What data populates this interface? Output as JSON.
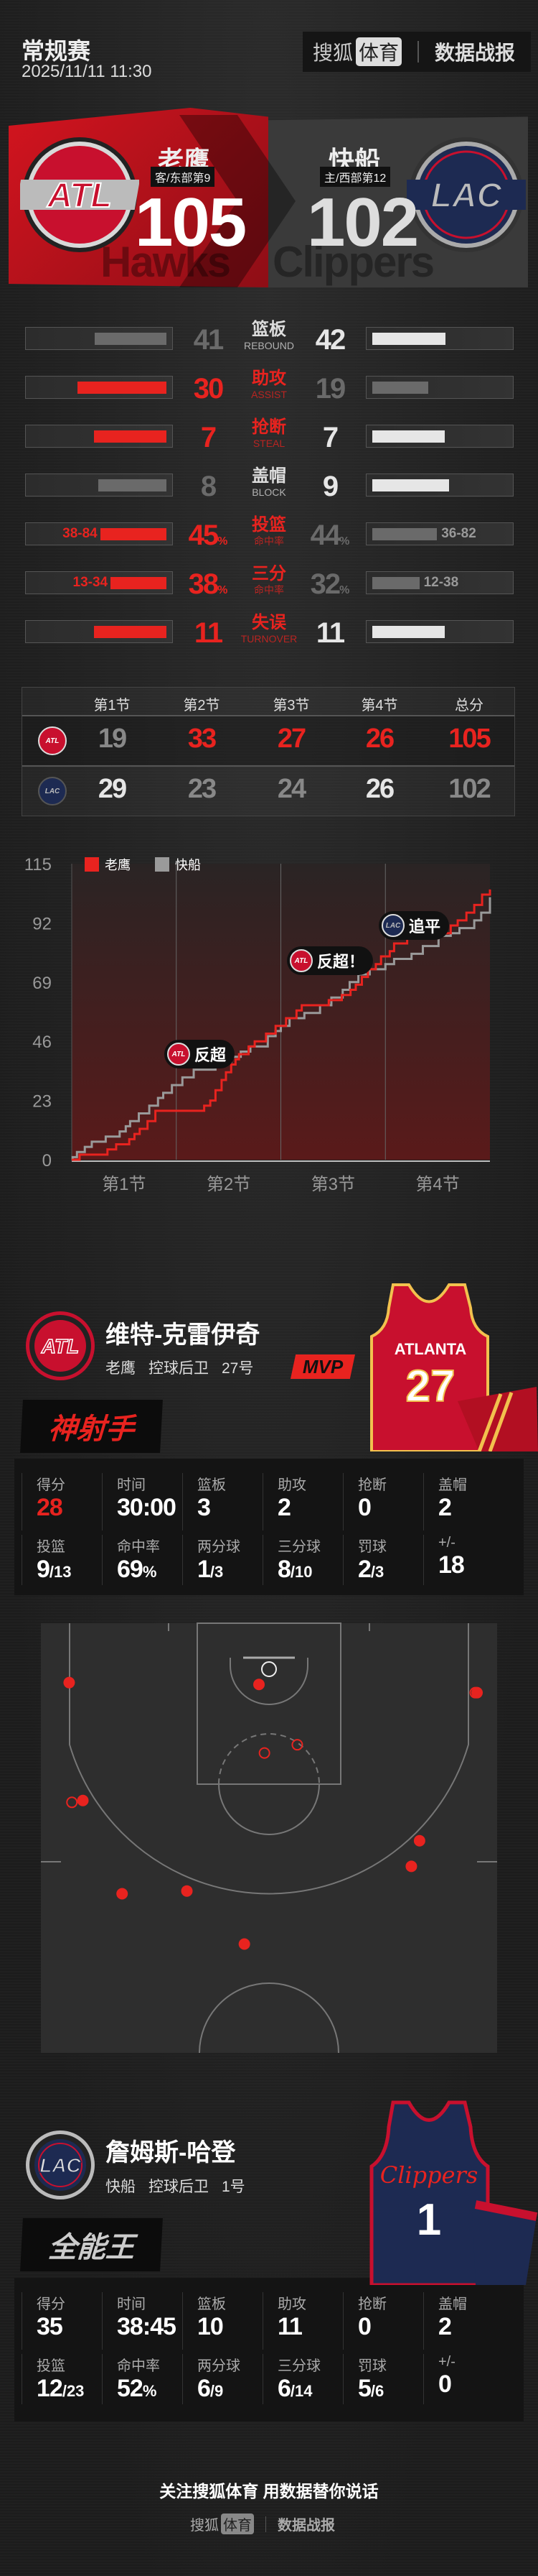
{
  "header": {
    "title": "常规赛",
    "datetime": "2025/11/11 11:30",
    "brand_sohu": "搜狐",
    "brand_sports": "体育",
    "brand_report": "数据战报"
  },
  "colors": {
    "accent_red": "#e8231f",
    "highlight_white": "#e6e6e6",
    "muted_gray": "#6a6a6a",
    "lac_navy": "#1d2a52",
    "background": "#232323"
  },
  "teams": {
    "away": {
      "name": "老鹰",
      "abbr": "ATL",
      "tag": "客/东部第9",
      "score": "105",
      "watermark": "Hawks"
    },
    "home": {
      "name": "快船",
      "abbr": "LAC",
      "tag": "主/西部第12",
      "score": "102",
      "watermark": "Clippers"
    }
  },
  "stats": [
    {
      "cn": "篮板",
      "en": "REBOUND",
      "away": 41,
      "home": 42,
      "type": "count"
    },
    {
      "cn": "助攻",
      "en": "ASSIST",
      "away": 30,
      "home": 19,
      "type": "count"
    },
    {
      "cn": "抢断",
      "en": "STEAL",
      "away": 7,
      "home": 7,
      "type": "count"
    },
    {
      "cn": "盖帽",
      "en": "BLOCK",
      "away": 8,
      "home": 9,
      "type": "count"
    },
    {
      "cn": "投篮",
      "en": "命中率",
      "away": 45,
      "home": 44,
      "type": "pct",
      "away_detail": "38-84",
      "home_detail": "36-82"
    },
    {
      "cn": "三分",
      "en": "命中率",
      "away": 38,
      "home": 32,
      "type": "pct",
      "away_detail": "13-34",
      "home_detail": "12-38"
    },
    {
      "cn": "失误",
      "en": "TURNOVER",
      "away": 11,
      "home": 11,
      "type": "count"
    }
  ],
  "quarters": {
    "headers": [
      "第1节",
      "第2节",
      "第3节",
      "第4节",
      "总分"
    ],
    "away": [
      19,
      33,
      27,
      26,
      105
    ],
    "home": [
      29,
      23,
      24,
      26,
      102
    ]
  },
  "chart_data": {
    "type": "line",
    "step": true,
    "ylim": [
      0,
      115
    ],
    "yticks": [
      0,
      23,
      46,
      69,
      92,
      115
    ],
    "xlim": [
      0,
      48
    ],
    "xlabels": [
      "第1节",
      "第2节",
      "第3节",
      "第4节"
    ],
    "legend": "top-left",
    "series": [
      {
        "name": "老鹰",
        "color": "#e8231f",
        "points": [
          [
            0,
            0
          ],
          [
            0.9,
            2
          ],
          [
            4.1,
            4
          ],
          [
            5.1,
            6
          ],
          [
            6.6,
            8
          ],
          [
            7.2,
            10
          ],
          [
            7.8,
            12
          ],
          [
            8.7,
            15
          ],
          [
            9.6,
            19
          ],
          [
            15.2,
            21
          ],
          [
            15.9,
            23
          ],
          [
            16.5,
            27
          ],
          [
            17.2,
            31
          ],
          [
            17.7,
            34
          ],
          [
            18.3,
            37
          ],
          [
            18.8,
            39
          ],
          [
            19.2,
            41
          ],
          [
            20.3,
            44
          ],
          [
            21,
            46
          ],
          [
            22.3,
            49
          ],
          [
            23.4,
            52
          ],
          [
            24.6,
            55
          ],
          [
            25.8,
            58
          ],
          [
            26.4,
            60
          ],
          [
            29.5,
            62
          ],
          [
            31,
            64
          ],
          [
            32,
            66
          ],
          [
            32.6,
            68
          ],
          [
            33.3,
            71
          ],
          [
            34,
            74
          ],
          [
            34.9,
            76
          ],
          [
            35.5,
            79
          ],
          [
            36.5,
            81
          ],
          [
            37,
            84
          ],
          [
            38.5,
            86
          ],
          [
            42,
            88
          ],
          [
            43.5,
            91
          ],
          [
            44.3,
            93
          ],
          [
            45.3,
            96
          ],
          [
            46.2,
            99
          ],
          [
            47.1,
            103
          ],
          [
            48,
            105
          ]
        ]
      },
      {
        "name": "快船",
        "color": "#9a9a9a",
        "points": [
          [
            0,
            0
          ],
          [
            0.1,
            1
          ],
          [
            0.6,
            3
          ],
          [
            1.5,
            5
          ],
          [
            2.3,
            7
          ],
          [
            3.9,
            9
          ],
          [
            5.5,
            11
          ],
          [
            6.2,
            13
          ],
          [
            6.7,
            15
          ],
          [
            7.7,
            18
          ],
          [
            8.9,
            21
          ],
          [
            9.9,
            24
          ],
          [
            10.5,
            26
          ],
          [
            11.5,
            29
          ],
          [
            12.7,
            32
          ],
          [
            14,
            35
          ],
          [
            16.5,
            38
          ],
          [
            18.3,
            40
          ],
          [
            19.4,
            42
          ],
          [
            20.5,
            44
          ],
          [
            22.5,
            48
          ],
          [
            23.4,
            50
          ],
          [
            24,
            52
          ],
          [
            25,
            55
          ],
          [
            26.7,
            57
          ],
          [
            28.5,
            60
          ],
          [
            29.8,
            63
          ],
          [
            31.1,
            66
          ],
          [
            31.9,
            69
          ],
          [
            32.9,
            72
          ],
          [
            34.2,
            74
          ],
          [
            36,
            76
          ],
          [
            37,
            78
          ],
          [
            39,
            80
          ],
          [
            40.3,
            83
          ],
          [
            42.1,
            87
          ],
          [
            43.5,
            88
          ],
          [
            44.5,
            90
          ],
          [
            46.2,
            93
          ],
          [
            47,
            96
          ],
          [
            48,
            102
          ]
        ]
      }
    ],
    "annotations": [
      {
        "team": "ATL",
        "text": "反超"
      },
      {
        "team": "ATL",
        "text": "反超！"
      },
      {
        "team": "LAC",
        "text": "追平"
      }
    ]
  },
  "players": [
    {
      "name": "维特-克雷伊奇",
      "team": "老鹰",
      "position": "控球后卫",
      "number": "27号",
      "mvp": "MVP",
      "title": "神射手",
      "logo": "ATL",
      "jersey_text": "ATLANTA",
      "jersey_number": "27",
      "stats": [
        {
          "label": "得分",
          "value": "28",
          "highlight": true
        },
        {
          "label": "时间",
          "value": "30:00"
        },
        {
          "label": "篮板",
          "value": "3"
        },
        {
          "label": "助攻",
          "value": "2"
        },
        {
          "label": "抢断",
          "value": "0"
        },
        {
          "label": "盖帽",
          "value": "2"
        },
        {
          "label": "投篮",
          "value": "9",
          "sub": "/13"
        },
        {
          "label": "命中率",
          "value": "69",
          "sub": "%"
        },
        {
          "label": "两分球",
          "value": "1",
          "sub": "/3"
        },
        {
          "label": "三分球",
          "value": "8",
          "sub": "/10"
        },
        {
          "label": "罚球",
          "value": "2",
          "sub": "/3"
        },
        {
          "label": "+/-",
          "value": "18"
        }
      ],
      "shots_ft": [
        {
          "x": 3.1,
          "y": 6.5,
          "made": true
        },
        {
          "x": 23.9,
          "y": 6.7,
          "made": true
        },
        {
          "x": 47.6,
          "y": 7.6,
          "made": false
        },
        {
          "x": 47.8,
          "y": 7.6,
          "made": true
        },
        {
          "x": 28.1,
          "y": 13.3,
          "made": false
        },
        {
          "x": 24.5,
          "y": 14.2,
          "made": false
        },
        {
          "x": 3.4,
          "y": 19.6,
          "made": false
        },
        {
          "x": 4.6,
          "y": 19.4,
          "made": true
        },
        {
          "x": 41.5,
          "y": 23.8,
          "made": true
        },
        {
          "x": 40.6,
          "y": 26.6,
          "made": true
        },
        {
          "x": 8.9,
          "y": 29.6,
          "made": true
        },
        {
          "x": 16.0,
          "y": 29.3,
          "made": true
        },
        {
          "x": 22.3,
          "y": 35.1,
          "made": true
        }
      ]
    },
    {
      "name": "詹姆斯-哈登",
      "team": "快船",
      "position": "控球后卫",
      "number": "1号",
      "title": "全能王",
      "logo": "LAC",
      "jersey_text": "Clippers",
      "jersey_number": "1",
      "stats": [
        {
          "label": "得分",
          "value": "35"
        },
        {
          "label": "时间",
          "value": "38:45"
        },
        {
          "label": "篮板",
          "value": "10"
        },
        {
          "label": "助攻",
          "value": "11"
        },
        {
          "label": "抢断",
          "value": "0"
        },
        {
          "label": "盖帽",
          "value": "2"
        },
        {
          "label": "投篮",
          "value": "12",
          "sub": "/23"
        },
        {
          "label": "命中率",
          "value": "52",
          "sub": "%"
        },
        {
          "label": "两分球",
          "value": "6",
          "sub": "/9"
        },
        {
          "label": "三分球",
          "value": "6",
          "sub": "/14"
        },
        {
          "label": "罚球",
          "value": "5",
          "sub": "/6"
        },
        {
          "label": "+/-",
          "value": "0"
        }
      ]
    }
  ],
  "footer": {
    "slogan": "关注搜狐体育 用数据替你说话",
    "brand_sohu": "搜狐",
    "brand_sports": "体育",
    "brand_report": "数据战报"
  }
}
